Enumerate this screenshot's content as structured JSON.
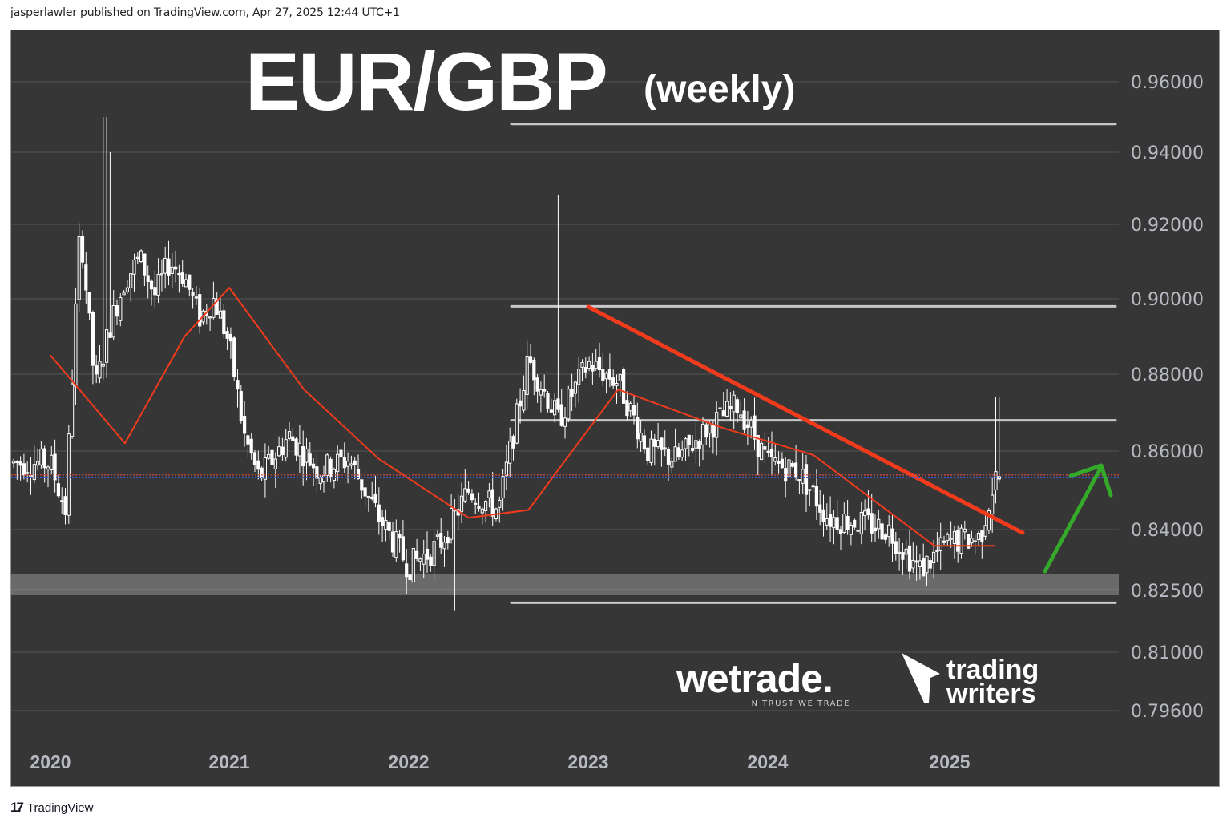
{
  "header": {
    "published_line": "jasperlawler published on TradingView.com, Apr 27, 2025 12:44 UTC+1"
  },
  "footer": {
    "logo_mark": "17",
    "logo_text": "TradingView"
  },
  "overlay": {
    "title_main": "EUR/GBP",
    "title_sub": "(weekly)",
    "wetrade_brand": "wetrade.",
    "wetrade_tagline": "IN TRUST WE TRADE",
    "tw_line1": "trading",
    "tw_line2": "writers"
  },
  "colors": {
    "background": "#363636",
    "grid": "#4a4a4a",
    "candle": "#ffffff",
    "moving_average": "#f23b1c",
    "trendline": "#f23b1c",
    "hlines": "#c8c8cc",
    "support_band": "#6a6a6a",
    "arrow": "#35a92a",
    "axis_text": "#b8bac2",
    "last_price_red": "#e04646",
    "last_price_blue": "#3a5bd9"
  },
  "chart_data": {
    "type": "candlestick",
    "title": "EUR/GBP (weekly)",
    "xlabel": "",
    "ylabel": "",
    "y_axis_scale": "log",
    "ylim": [
      0.789,
      0.975
    ],
    "y_ticks": [
      "0.96000",
      "0.94000",
      "0.92000",
      "0.90000",
      "0.88000",
      "0.86000",
      "0.84000",
      "0.82500",
      "0.81000",
      "0.79600"
    ],
    "x_ticks": [
      "2020",
      "2021",
      "2022",
      "2023",
      "2024",
      "2025"
    ],
    "grid": true,
    "indicators": [
      {
        "name": "Moving Average",
        "color": "#f23b1c",
        "approx_values": [
          {
            "date": "2020-01",
            "value": 0.885
          },
          {
            "date": "2020-06",
            "value": 0.862
          },
          {
            "date": "2020-10",
            "value": 0.89
          },
          {
            "date": "2021-01",
            "value": 0.903
          },
          {
            "date": "2021-06",
            "value": 0.876
          },
          {
            "date": "2021-11",
            "value": 0.858
          },
          {
            "date": "2022-05",
            "value": 0.843
          },
          {
            "date": "2022-09",
            "value": 0.845
          },
          {
            "date": "2023-03",
            "value": 0.876
          },
          {
            "date": "2023-10",
            "value": 0.866
          },
          {
            "date": "2024-04",
            "value": 0.859
          },
          {
            "date": "2024-12",
            "value": 0.836
          },
          {
            "date": "2025-04",
            "value": 0.836
          }
        ]
      }
    ],
    "annotations": [
      {
        "type": "horizontal_line",
        "price": 0.948,
        "from": "2022-09"
      },
      {
        "type": "horizontal_line",
        "price": 0.898,
        "from": "2022-09"
      },
      {
        "type": "horizontal_line",
        "price": 0.868,
        "from": "2022-09"
      },
      {
        "type": "horizontal_line",
        "price": 0.822,
        "from": "2022-09"
      },
      {
        "type": "support_zone",
        "price_low": 0.8245,
        "price_high": 0.8295
      },
      {
        "type": "trendline",
        "from": {
          "date": "2023-01",
          "price": 0.898
        },
        "to": {
          "date": "2025-05",
          "price": 0.839
        },
        "color": "#f23b1c"
      },
      {
        "type": "arrow",
        "direction": "up",
        "color": "#35a92a",
        "from_price": 0.829,
        "to_price": 0.857
      },
      {
        "type": "last_price_line",
        "price": 0.8535
      }
    ],
    "series": [
      {
        "name": "EUR/GBP weekly closes (approx)",
        "points": [
          {
            "date": "2020-01",
            "close": 0.857
          },
          {
            "date": "2020-02",
            "close": 0.845
          },
          {
            "date": "2020-03",
            "close": 0.92
          },
          {
            "date": "2020-04",
            "close": 0.876
          },
          {
            "date": "2020-05",
            "close": 0.893
          },
          {
            "date": "2020-06",
            "close": 0.905
          },
          {
            "date": "2020-07",
            "close": 0.911
          },
          {
            "date": "2020-08",
            "close": 0.901
          },
          {
            "date": "2020-09",
            "close": 0.91
          },
          {
            "date": "2020-10",
            "close": 0.906
          },
          {
            "date": "2020-11",
            "close": 0.895
          },
          {
            "date": "2020-12",
            "close": 0.9
          },
          {
            "date": "2021-01",
            "close": 0.888
          },
          {
            "date": "2021-02",
            "close": 0.864
          },
          {
            "date": "2021-03",
            "close": 0.853
          },
          {
            "date": "2021-05",
            "close": 0.864
          },
          {
            "date": "2021-07",
            "close": 0.855
          },
          {
            "date": "2021-09",
            "close": 0.858
          },
          {
            "date": "2021-11",
            "close": 0.843
          },
          {
            "date": "2022-01",
            "close": 0.831
          },
          {
            "date": "2022-03",
            "close": 0.836
          },
          {
            "date": "2022-05",
            "close": 0.85
          },
          {
            "date": "2022-07",
            "close": 0.845
          },
          {
            "date": "2022-09",
            "close": 0.884
          },
          {
            "date": "2022-11",
            "close": 0.868
          },
          {
            "date": "2023-01",
            "close": 0.883
          },
          {
            "date": "2023-03",
            "close": 0.878
          },
          {
            "date": "2023-05",
            "close": 0.86
          },
          {
            "date": "2023-07",
            "close": 0.858
          },
          {
            "date": "2023-09",
            "close": 0.866
          },
          {
            "date": "2023-11",
            "close": 0.872
          },
          {
            "date": "2024-01",
            "close": 0.857
          },
          {
            "date": "2024-03",
            "close": 0.855
          },
          {
            "date": "2024-05",
            "close": 0.843
          },
          {
            "date": "2024-07",
            "close": 0.842
          },
          {
            "date": "2024-09",
            "close": 0.84
          },
          {
            "date": "2024-11",
            "close": 0.83
          },
          {
            "date": "2025-01",
            "close": 0.837
          },
          {
            "date": "2025-03",
            "close": 0.838
          },
          {
            "date": "2025-04",
            "close": 0.853
          }
        ]
      }
    ],
    "notable_extremes": {
      "high": {
        "date": "2020-03",
        "price": 0.95
      },
      "low": {
        "date": "2022-03",
        "price": 0.82
      }
    }
  }
}
